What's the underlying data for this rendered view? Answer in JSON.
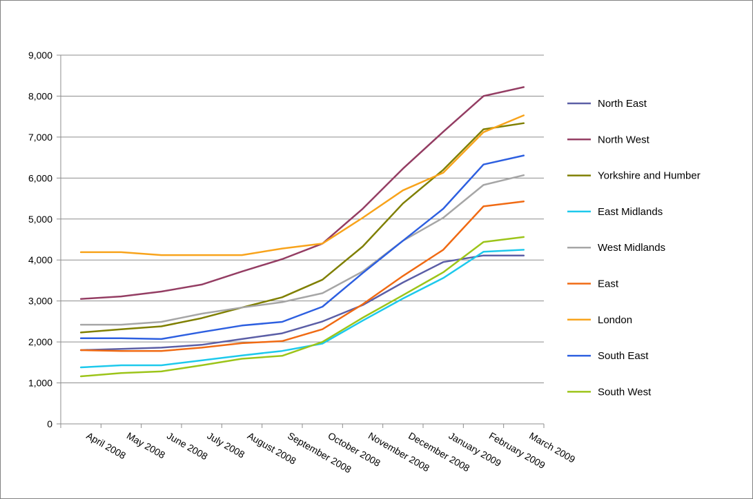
{
  "chart_data": {
    "type": "line",
    "title": "",
    "xlabel": "",
    "ylabel": "",
    "ylim": [
      0,
      9000
    ],
    "ytick_step": 1000,
    "ytick_labels": [
      "0",
      "1,000",
      "2,000",
      "3,000",
      "4,000",
      "5,000",
      "6,000",
      "7,000",
      "8,000",
      "9,000"
    ],
    "grid": "horizontal",
    "legend_position": "right",
    "categories": [
      "April 2008",
      "May 2008",
      "June 2008",
      "July 2008",
      "August 2008",
      "September 2008",
      "October 2008",
      "November 2008",
      "December 2008",
      "January 2009",
      "February 2009",
      "March 2009"
    ],
    "series": [
      {
        "name": "North East",
        "color": "#5b5ea6",
        "values": [
          1800,
          1830,
          1860,
          1930,
          2070,
          2210,
          2500,
          2900,
          3450,
          3950,
          4110,
          4110
        ]
      },
      {
        "name": "North West",
        "color": "#943d63",
        "values": [
          3050,
          3110,
          3230,
          3400,
          3720,
          4020,
          4400,
          5250,
          6230,
          7130,
          8000,
          8220
        ]
      },
      {
        "name": "Yorkshire and Humber",
        "color": "#7f7f00",
        "values": [
          2230,
          2310,
          2380,
          2580,
          2840,
          3090,
          3520,
          4330,
          5380,
          6200,
          7190,
          7340
        ]
      },
      {
        "name": "East Midlands",
        "color": "#1dc9ec",
        "values": [
          1380,
          1430,
          1430,
          1550,
          1670,
          1780,
          1960,
          2520,
          3060,
          3560,
          4200,
          4250
        ]
      },
      {
        "name": "West Midlands",
        "color": "#a6a6a6",
        "values": [
          2420,
          2420,
          2490,
          2690,
          2840,
          2970,
          3190,
          3720,
          4470,
          5030,
          5830,
          6070
        ]
      },
      {
        "name": "East",
        "color": "#f06a13",
        "values": [
          1800,
          1780,
          1780,
          1860,
          1970,
          2020,
          2310,
          2920,
          3610,
          4250,
          5310,
          5430
        ]
      },
      {
        "name": "London",
        "color": "#f8a31b",
        "values": [
          4190,
          4190,
          4120,
          4120,
          4120,
          4280,
          4400,
          5030,
          5700,
          6130,
          7120,
          7530
        ]
      },
      {
        "name": "South East",
        "color": "#2d5fe0",
        "values": [
          2090,
          2090,
          2070,
          2240,
          2400,
          2490,
          2860,
          3680,
          4470,
          5250,
          6330,
          6550
        ]
      },
      {
        "name": "South West",
        "color": "#9cc419",
        "values": [
          1160,
          1240,
          1280,
          1430,
          1590,
          1660,
          2000,
          2590,
          3140,
          3700,
          4440,
          4560
        ]
      }
    ]
  }
}
